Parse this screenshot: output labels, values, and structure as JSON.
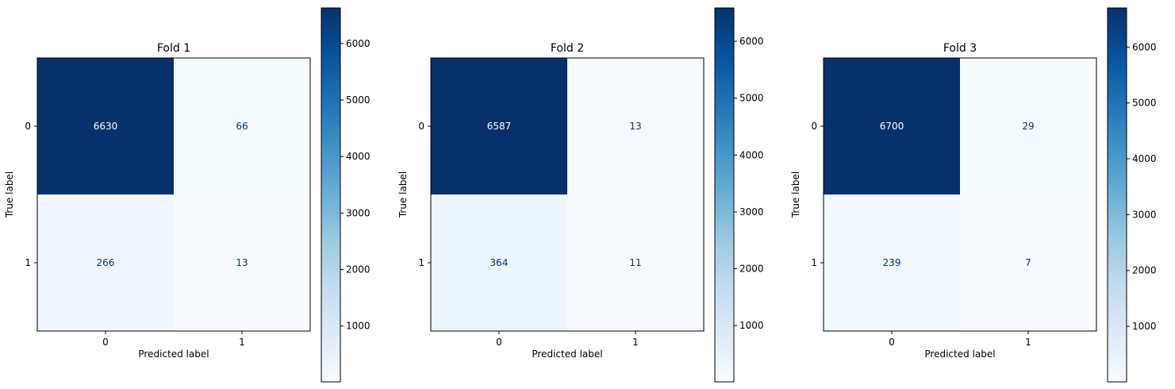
{
  "chart_data": [
    {
      "type": "heatmap",
      "title": "Fold 1",
      "xlabel": "Predicted label",
      "ylabel": "True label",
      "x_categories": [
        "0",
        "1"
      ],
      "y_categories": [
        "0",
        "1"
      ],
      "matrix": [
        [
          6630,
          66
        ],
        [
          266,
          13
        ]
      ],
      "colormap": "Blues",
      "colorbar": {
        "min": 13,
        "max": 6630,
        "ticks": [
          1000,
          2000,
          3000,
          4000,
          5000,
          6000
        ]
      }
    },
    {
      "type": "heatmap",
      "title": "Fold 2",
      "xlabel": "Predicted label",
      "ylabel": "True label",
      "x_categories": [
        "0",
        "1"
      ],
      "y_categories": [
        "0",
        "1"
      ],
      "matrix": [
        [
          6587,
          13
        ],
        [
          364,
          11
        ]
      ],
      "colormap": "Blues",
      "colorbar": {
        "min": 11,
        "max": 6587,
        "ticks": [
          1000,
          2000,
          3000,
          4000,
          5000,
          6000
        ]
      }
    },
    {
      "type": "heatmap",
      "title": "Fold 3",
      "xlabel": "Predicted label",
      "ylabel": "True label",
      "x_categories": [
        "0",
        "1"
      ],
      "y_categories": [
        "0",
        "1"
      ],
      "matrix": [
        [
          6700,
          29
        ],
        [
          239,
          7
        ]
      ],
      "colormap": "Blues",
      "colorbar": {
        "min": 7,
        "max": 6700,
        "ticks": [
          1000,
          2000,
          3000,
          4000,
          5000,
          6000
        ]
      }
    }
  ]
}
